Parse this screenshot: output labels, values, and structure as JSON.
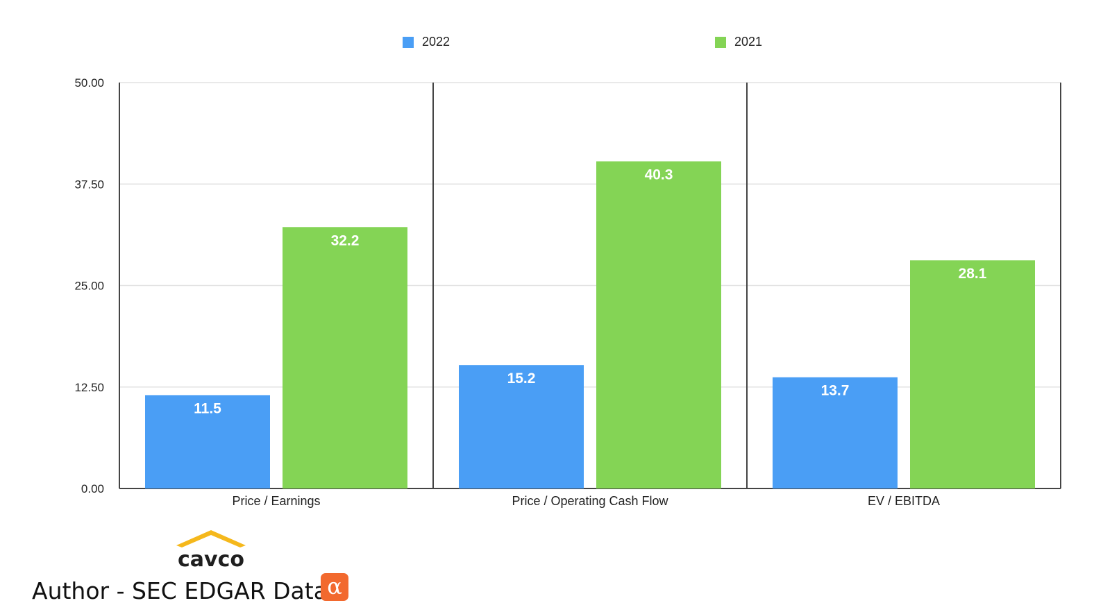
{
  "legend": [
    {
      "label": "2022",
      "color": "#4a9ef5"
    },
    {
      "label": "2021",
      "color": "#84d455"
    }
  ],
  "chart_data": {
    "type": "bar",
    "categories": [
      "Price / Earnings",
      "Price / Operating Cash Flow",
      "EV / EBITDA"
    ],
    "series": [
      {
        "name": "2022",
        "values": [
          11.5,
          15.2,
          13.7
        ],
        "color": "#4a9ef5"
      },
      {
        "name": "2021",
        "values": [
          32.2,
          40.3,
          28.1
        ],
        "color": "#84d455"
      }
    ],
    "y_ticks": [
      "0.00",
      "12.50",
      "25.00",
      "37.50",
      "50.00"
    ],
    "ylim": [
      0,
      50
    ],
    "grid": true,
    "legend_position": "top"
  },
  "footer": {
    "author": "Author - SEC EDGAR Data",
    "logo_text": "cavco",
    "badge_icon": "seeking-alpha-icon",
    "badge_glyph": "α"
  }
}
